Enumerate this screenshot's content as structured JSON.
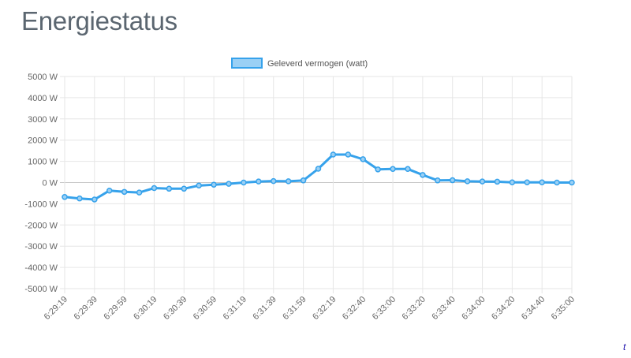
{
  "page": {
    "title": "Energiestatus",
    "corner_mark": "t"
  },
  "colors": {
    "line": "#36a2eb",
    "legend_fill": "#9ad0f5",
    "grid": "#e6e6e6",
    "zero_line": "#c8c8c8",
    "tick_text": "#666666"
  },
  "chart_data": {
    "type": "line",
    "legend_position": "top",
    "grid": true,
    "ylim": [
      -5000,
      5000
    ],
    "y_ticks": [
      "5000 W",
      "4000 W",
      "3000 W",
      "2000 W",
      "1000 W",
      "0 W",
      "-1000 W",
      "-2000 W",
      "-3000 W",
      "-4000 W",
      "-5000 W"
    ],
    "y_tick_values": [
      5000,
      4000,
      3000,
      2000,
      1000,
      0,
      -1000,
      -2000,
      -3000,
      -4000,
      -5000
    ],
    "x_tick_labels": [
      "6:29:19",
      "6:29:39",
      "6:29:59",
      "6:30:19",
      "6:30:39",
      "6:30:59",
      "6:31:19",
      "6:31:39",
      "6:31:59",
      "6:32:19",
      "6:32:40",
      "6:33:00",
      "6:33:20",
      "6:33:40",
      "6:34:00",
      "6:34:20",
      "6:34:40",
      "6:35:00"
    ],
    "series": [
      {
        "name": "Geleverd vermogen (watt)",
        "values": [
          -680,
          -750,
          -800,
          -380,
          -440,
          -470,
          -260,
          -290,
          -290,
          -140,
          -100,
          -60,
          0,
          50,
          70,
          60,
          100,
          650,
          1320,
          1320,
          1100,
          620,
          640,
          640,
          360,
          100,
          110,
          60,
          50,
          40,
          10,
          10,
          10,
          0,
          0
        ]
      }
    ]
  }
}
